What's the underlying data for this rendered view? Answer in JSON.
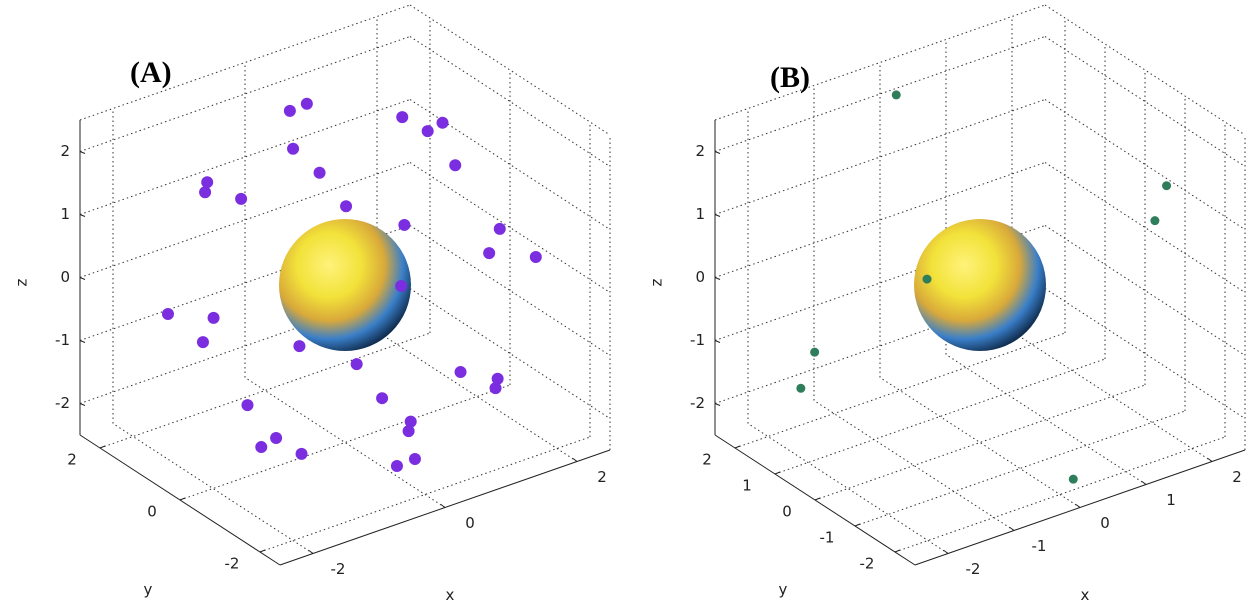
{
  "chart_data": [
    {
      "type": "scatter3d",
      "title": "(A)",
      "xlabel": "x",
      "ylabel": "y",
      "zlabel": "z",
      "color": "#7b2ee0",
      "grid": true,
      "xlim": [
        -2.5,
        2.5
      ],
      "ylim": [
        -2.5,
        2.5
      ],
      "zlim": [
        -2.5,
        2.5
      ],
      "xticks": [
        -2,
        0,
        2
      ],
      "yticks": [
        -2,
        0,
        2
      ],
      "zticks": [
        -2,
        -1,
        0,
        1,
        2
      ],
      "x": [
        -0.52,
        -0.36,
        0.54,
        0.78,
        0.92,
        -0.49,
        1.04,
        -0.24,
        -1.3,
        -1.32,
        -0.98,
        0.01,
        0.56,
        1.46,
        1.36,
        1.8,
        0.53,
        -1.67,
        -1.24,
        -1.34,
        -0.43,
        0.11,
        1.09,
        1.44,
        1.42,
        0.35,
        -0.92,
        0.62,
        -0.65,
        -0.79,
        -0.41,
        0.6,
        0.66,
        0.49
      ],
      "y": [
        0.52,
        0.36,
        -0.54,
        -0.78,
        -0.92,
        0.49,
        -1.04,
        0.24,
        1.3,
        1.32,
        0.98,
        -0.01,
        -0.56,
        -1.46,
        -1.36,
        -1.8,
        -0.53,
        1.67,
        1.24,
        1.34,
        0.43,
        -0.11,
        -1.09,
        -1.44,
        -1.42,
        -0.35,
        0.92,
        -0.62,
        0.65,
        0.79,
        0.41,
        -0.6,
        -0.66,
        -0.49
      ],
      "z": [
        2.74,
        2.86,
        2.69,
        2.48,
        2.62,
        2.14,
        1.95,
        1.77,
        1.57,
        1.41,
        1.32,
        1.25,
        0.98,
        0.96,
        0.57,
        0.53,
        0.01,
        -0.54,
        -0.58,
        -0.97,
        -0.99,
        -1.25,
        -1.33,
        -1.42,
        -1.57,
        -1.78,
        -1.95,
        -2.14,
        -2.46,
        -2.61,
        -2.7,
        -2.29,
        -2.73,
        -2.85
      ]
    },
    {
      "type": "scatter3d",
      "title": "(B)",
      "xlabel": "x",
      "ylabel": "y",
      "zlabel": "z",
      "color": "#2e7d5b",
      "grid": true,
      "xlim": [
        -2.5,
        2.5
      ],
      "ylim": [
        -2.5,
        2.5
      ],
      "zlim": [
        -2.5,
        2.5
      ],
      "xticks": [
        -2,
        -1,
        0,
        1,
        2
      ],
      "yticks": [
        -2,
        -1,
        0,
        1,
        2
      ],
      "zticks": [
        -2,
        -1,
        0,
        1,
        2
      ],
      "x": [
        -0.79,
        1.76,
        1.65,
        -0.5,
        -1.56,
        -1.69,
        0.88
      ],
      "y": [
        0.79,
        -1.76,
        -1.65,
        0.5,
        1.56,
        1.69,
        -0.88
      ],
      "z": [
        2.98,
        1.66,
        1.1,
        0.07,
        -1.14,
        -1.72,
        -3.04
      ]
    }
  ]
}
